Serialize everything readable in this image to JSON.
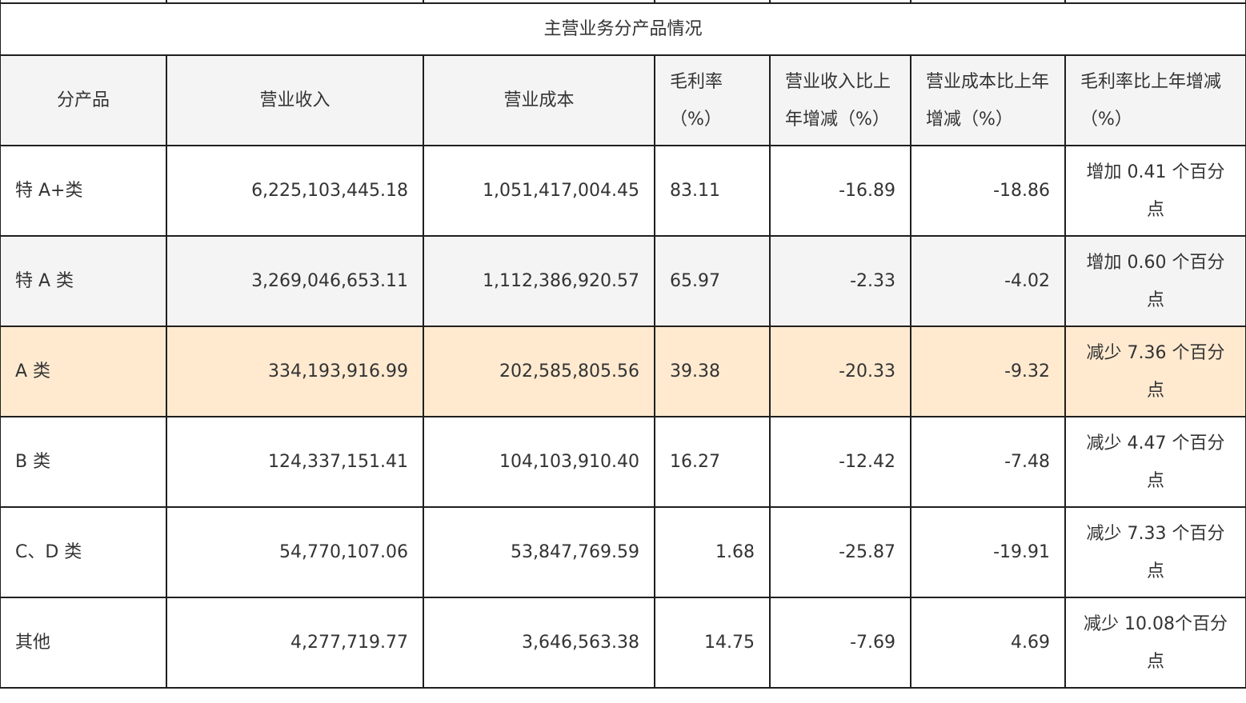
{
  "table": {
    "title": "主营业务分产品情况",
    "headers": {
      "product": "分产品",
      "revenue": "营业收入",
      "cost": "营业成本",
      "margin": "毛利率（%）",
      "revenue_change": "营业收入比上年增减（%）",
      "cost_change": "营业成本比上年增减（%）",
      "margin_change": "毛利率比上年增减（%）"
    },
    "rows": [
      {
        "product": "特 A+类",
        "revenue": "6,225,103,445.18",
        "cost": "1,051,417,004.45",
        "margin": "83.11",
        "revenue_change": "-16.89",
        "cost_change": "-18.86",
        "margin_change": "增加 0.41 个百分点"
      },
      {
        "product": "特 A 类",
        "revenue": "3,269,046,653.11",
        "cost": "1,112,386,920.57",
        "margin": "65.97",
        "revenue_change": "-2.33",
        "cost_change": "-4.02",
        "margin_change": "增加 0.60 个百分点"
      },
      {
        "product": "A 类",
        "revenue": "334,193,916.99",
        "cost": "202,585,805.56",
        "margin": "39.38",
        "revenue_change": "-20.33",
        "cost_change": "-9.32",
        "margin_change": "减少 7.36 个百分点"
      },
      {
        "product": "B 类",
        "revenue": "124,337,151.41",
        "cost": "104,103,910.40",
        "margin": "16.27",
        "revenue_change": "-12.42",
        "cost_change": "-7.48",
        "margin_change": "减少 4.47 个百分点"
      },
      {
        "product": "C、D 类",
        "revenue": "54,770,107.06",
        "cost": "53,847,769.59",
        "margin": "1.68",
        "revenue_change": "-25.87",
        "cost_change": "-19.91",
        "margin_change": "减少 7.33 个百分点"
      },
      {
        "product": "其他",
        "revenue": "4,277,719.77",
        "cost": "3,646,563.38",
        "margin": "14.75",
        "revenue_change": "-7.69",
        "cost_change": "4.69",
        "margin_change": "减少 10.08个百分点"
      }
    ]
  }
}
